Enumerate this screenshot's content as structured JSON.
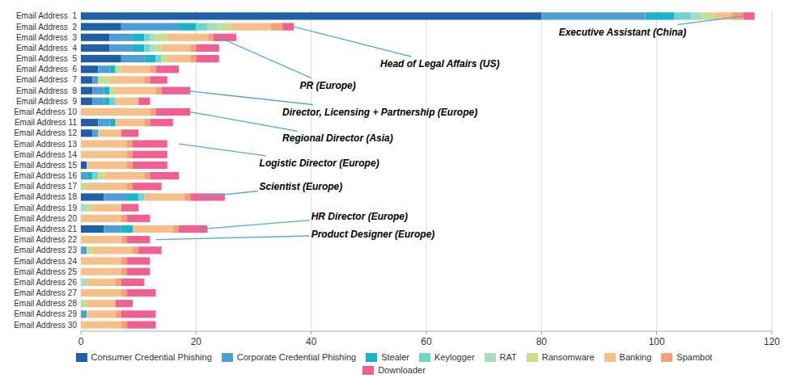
{
  "chart_data": {
    "type": "bar",
    "orientation": "horizontal",
    "stacked": true,
    "grid": true,
    "legend": "bottom",
    "categories": [
      "Email Address  1",
      "Email Address  2",
      "Email Address  3",
      "Email Address  4",
      "Email Address  5",
      "Email Address  6",
      "Email Address  7",
      "Email Address  8",
      "Email Address  9",
      "Email Address 10",
      "Email Address 11",
      "Email Address 12",
      "Email Address 13",
      "Email Address 14",
      "Email Address 15",
      "Email Address 16",
      "Email Address 17",
      "Email Address 18",
      "Email Address 19",
      "Email Address 20",
      "Email Address 21",
      "Email Address 22",
      "Email Address 23",
      "Email Address 24",
      "Email Address 25",
      "Email Address 26",
      "Email Address 27",
      "Email Address 28",
      "Email Address 29",
      "Email Address 30"
    ],
    "series": [
      {
        "name": "Consumer Credential Phishing",
        "color": "#1f5fa6",
        "values": [
          80,
          7,
          5,
          5,
          7,
          3,
          2,
          2,
          2,
          0,
          3,
          2,
          0,
          0,
          1,
          0,
          0,
          4,
          0,
          0,
          4,
          0,
          0,
          0,
          0,
          0,
          0,
          0,
          0,
          0
        ]
      },
      {
        "name": "Corporate Credential Phishing",
        "color": "#4f9fd4",
        "values": [
          18,
          10,
          4,
          4,
          4,
          2,
          1,
          2,
          2,
          0,
          2,
          1,
          0,
          0,
          0,
          1,
          0,
          4,
          0,
          0,
          3,
          0,
          1,
          0,
          0,
          0,
          0,
          0,
          1,
          0
        ]
      },
      {
        "name": "Stealer",
        "color": "#1ab3c8",
        "values": [
          5,
          3,
          2,
          2,
          2,
          1,
          0,
          1,
          1,
          0,
          1,
          0,
          0,
          0,
          0,
          1,
          0,
          2,
          0,
          0,
          2,
          0,
          0,
          0,
          0,
          0,
          0,
          0,
          0,
          0
        ]
      },
      {
        "name": "Keylogger",
        "color": "#6ed5c8",
        "values": [
          3,
          2,
          1,
          1,
          1,
          0,
          0,
          0,
          1,
          0,
          0,
          0,
          0,
          0,
          0,
          1,
          0,
          1,
          0,
          0,
          0,
          0,
          0,
          0,
          0,
          0,
          0,
          0,
          0,
          0
        ]
      },
      {
        "name": "RAT",
        "color": "#a8ddc0",
        "values": [
          2,
          2,
          1,
          1,
          0,
          0,
          0,
          0,
          0,
          0,
          0,
          0,
          0,
          0,
          0,
          0,
          0,
          0,
          1,
          0,
          0,
          0,
          0,
          0,
          0,
          1,
          0,
          0,
          0,
          0
        ]
      },
      {
        "name": "Ransomware",
        "color": "#c5e08a",
        "values": [
          2,
          2,
          2,
          1,
          1,
          1,
          2,
          1,
          0,
          0,
          0,
          0,
          0,
          0,
          0,
          1,
          1,
          0,
          1,
          0,
          0,
          0,
          1,
          0,
          0,
          0,
          0,
          1,
          0,
          0
        ]
      },
      {
        "name": "Banking",
        "color": "#f5c08a",
        "values": [
          3,
          7,
          7,
          5,
          4,
          5,
          6,
          7,
          4,
          12,
          5,
          4,
          8,
          8,
          7,
          7,
          7,
          7,
          5,
          7,
          7,
          7,
          7,
          7,
          7,
          5,
          7,
          5,
          5,
          7
        ]
      },
      {
        "name": "Spambot",
        "color": "#f5a07a",
        "values": [
          2,
          2,
          1,
          1,
          1,
          1,
          1,
          1,
          0,
          1,
          1,
          0,
          1,
          1,
          1,
          1,
          1,
          1,
          0,
          1,
          1,
          1,
          1,
          1,
          1,
          1,
          1,
          0,
          1,
          1
        ]
      },
      {
        "name": "Downloader",
        "color": "#f06090",
        "values": [
          2,
          2,
          4,
          4,
          4,
          4,
          3,
          5,
          2,
          6,
          4,
          3,
          6,
          6,
          6,
          5,
          5,
          6,
          3,
          4,
          5,
          4,
          4,
          4,
          4,
          4,
          5,
          3,
          6,
          5
        ]
      }
    ],
    "xlim": [
      0,
      120
    ],
    "xticks": [
      0,
      20,
      40,
      60,
      80,
      100,
      120
    ],
    "annotations": [
      {
        "text": "Executive Assistant (China)",
        "category": 0,
        "x": 115,
        "text_x": 83,
        "text_y": 27.5,
        "color": "#4da8d8"
      },
      {
        "text": "Head of Legal Affairs (US)",
        "category": 1,
        "x": 37,
        "text_x": 52,
        "text_y": 24.5,
        "color": "#4da8d8"
      },
      {
        "text": "PR (Europe)",
        "category": 2,
        "x": 24,
        "text_x": 38,
        "text_y": 22.5,
        "color": "#4da8d8"
      },
      {
        "text": "Director, Licensing + Partnership (Europe)",
        "category": 7,
        "x": 18,
        "text_x": 35,
        "text_y": 20.0,
        "color": "#4da8d8"
      },
      {
        "text": "Regional Director (Asia)",
        "category": 9,
        "x": 19,
        "text_x": 35,
        "text_y": 17.5,
        "color": "#4da8d8"
      },
      {
        "text": "Logistic Director (Europe)",
        "category": 12,
        "x": 17,
        "text_x": 31,
        "text_y": 15.2,
        "color": "#4da8d8"
      },
      {
        "text": "Scientist (Europe)",
        "category": 17,
        "x": 21,
        "text_x": 31,
        "text_y": 13.0,
        "color": "#4da8d8"
      },
      {
        "text": "HR Director (Europe)",
        "category": 20,
        "x": 21,
        "text_x": 40,
        "text_y": 10.2,
        "color": "#4da8d8"
      },
      {
        "text": "Product Designer (Europe)",
        "category": 21,
        "x": 13,
        "text_x": 40,
        "text_y": 8.5,
        "color": "#4da8d8"
      }
    ]
  }
}
